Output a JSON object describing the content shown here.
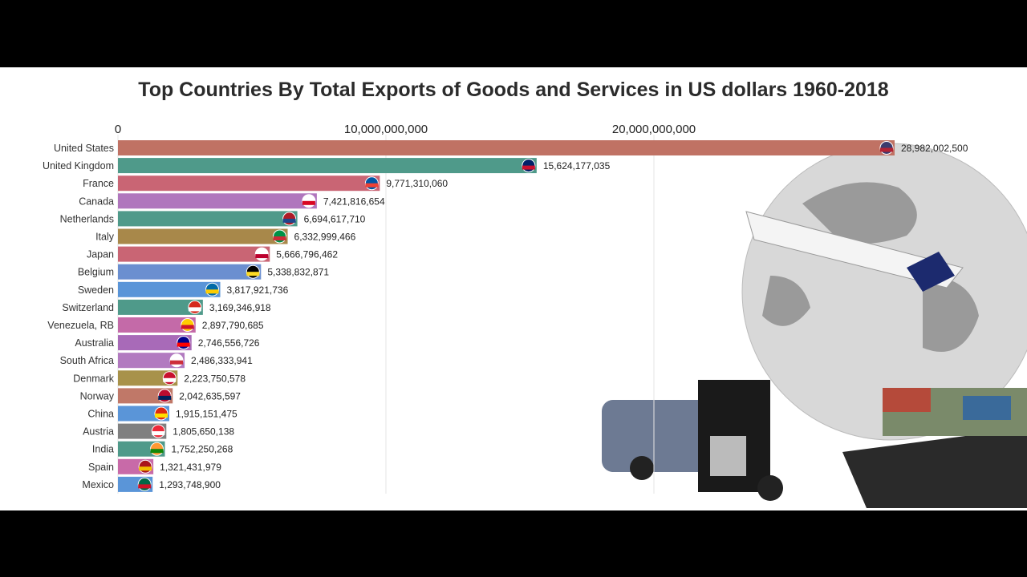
{
  "chart_data": {
    "type": "bar",
    "orientation": "horizontal",
    "title": "Top Countries By Total Exports of Goods and Services in US dollars 1960-2018",
    "xlim": [
      0,
      30000000000
    ],
    "xticks": [
      0,
      10000000000,
      20000000000
    ],
    "xtick_labels": [
      "0",
      "10,000,000,000",
      "20,000,000,000"
    ],
    "grid": true,
    "categories": [
      "United States",
      "United Kingdom",
      "France",
      "Canada",
      "Netherlands",
      "Italy",
      "Japan",
      "Belgium",
      "Sweden",
      "Switzerland",
      "Venezuela, RB",
      "Australia",
      "South Africa",
      "Denmark",
      "Norway",
      "China",
      "Austria",
      "India",
      "Spain",
      "Mexico"
    ],
    "values": [
      28982002500,
      15624177035,
      9771310060,
      7421816654,
      6694617710,
      6332999466,
      5666796462,
      5338832871,
      3817921736,
      3169346918,
      2897790685,
      2746556726,
      2486333941,
      2223750578,
      2042635597,
      1915151475,
      1805650138,
      1752250268,
      1321431979,
      1293748900
    ],
    "value_labels": [
      "28,982,002,500",
      "15,624,177,035",
      "9,771,310,060",
      "7,421,816,654",
      "6,694,617,710",
      "6,332,999,466",
      "5,666,796,462",
      "5,338,832,871",
      "3,817,921,736",
      "3,169,346,918",
      "2,897,790,685",
      "2,746,556,726",
      "2,486,333,941",
      "2,223,750,578",
      "2,042,635,597",
      "1,915,151,475",
      "1,805,650,138",
      "1,752,250,268",
      "1,321,431,979",
      "1,293,748,900"
    ],
    "colors": [
      "#c07264",
      "#4f9a8a",
      "#c96574",
      "#b076bd",
      "#4f9a8a",
      "#a8884a",
      "#c96574",
      "#6b8fd0",
      "#5a95d8",
      "#4f9a8a",
      "#c46aa8",
      "#a86ab8",
      "#b27ac0",
      "#a8924a",
      "#c07868",
      "#5a95d8",
      "#808080",
      "#4f9a8a",
      "#c86aa8",
      "#5a95d8"
    ],
    "flag_colors": [
      [
        "#3c3b6e",
        "#b22234"
      ],
      [
        "#012169",
        "#c8102e"
      ],
      [
        "#0055a4",
        "#ef4135"
      ],
      [
        "#ffffff",
        "#d80621"
      ],
      [
        "#ae1c28",
        "#21468b"
      ],
      [
        "#009246",
        "#ce2b37"
      ],
      [
        "#ffffff",
        "#bc002d"
      ],
      [
        "#000000",
        "#fdda24"
      ],
      [
        "#006aa7",
        "#fecc00"
      ],
      [
        "#d52b1e",
        "#ffffff"
      ],
      [
        "#ffcc00",
        "#cf142b"
      ],
      [
        "#00008b",
        "#ff0000"
      ],
      [
        "#ffffff",
        "#cd2e3a"
      ],
      [
        "#c8102e",
        "#ffffff"
      ],
      [
        "#ba0c2f",
        "#00205b"
      ],
      [
        "#de2910",
        "#ffde00"
      ],
      [
        "#ed2939",
        "#ffffff"
      ],
      [
        "#ff9933",
        "#138808"
      ],
      [
        "#aa151b",
        "#f1bf00"
      ],
      [
        "#006847",
        "#ce1126"
      ]
    ]
  }
}
